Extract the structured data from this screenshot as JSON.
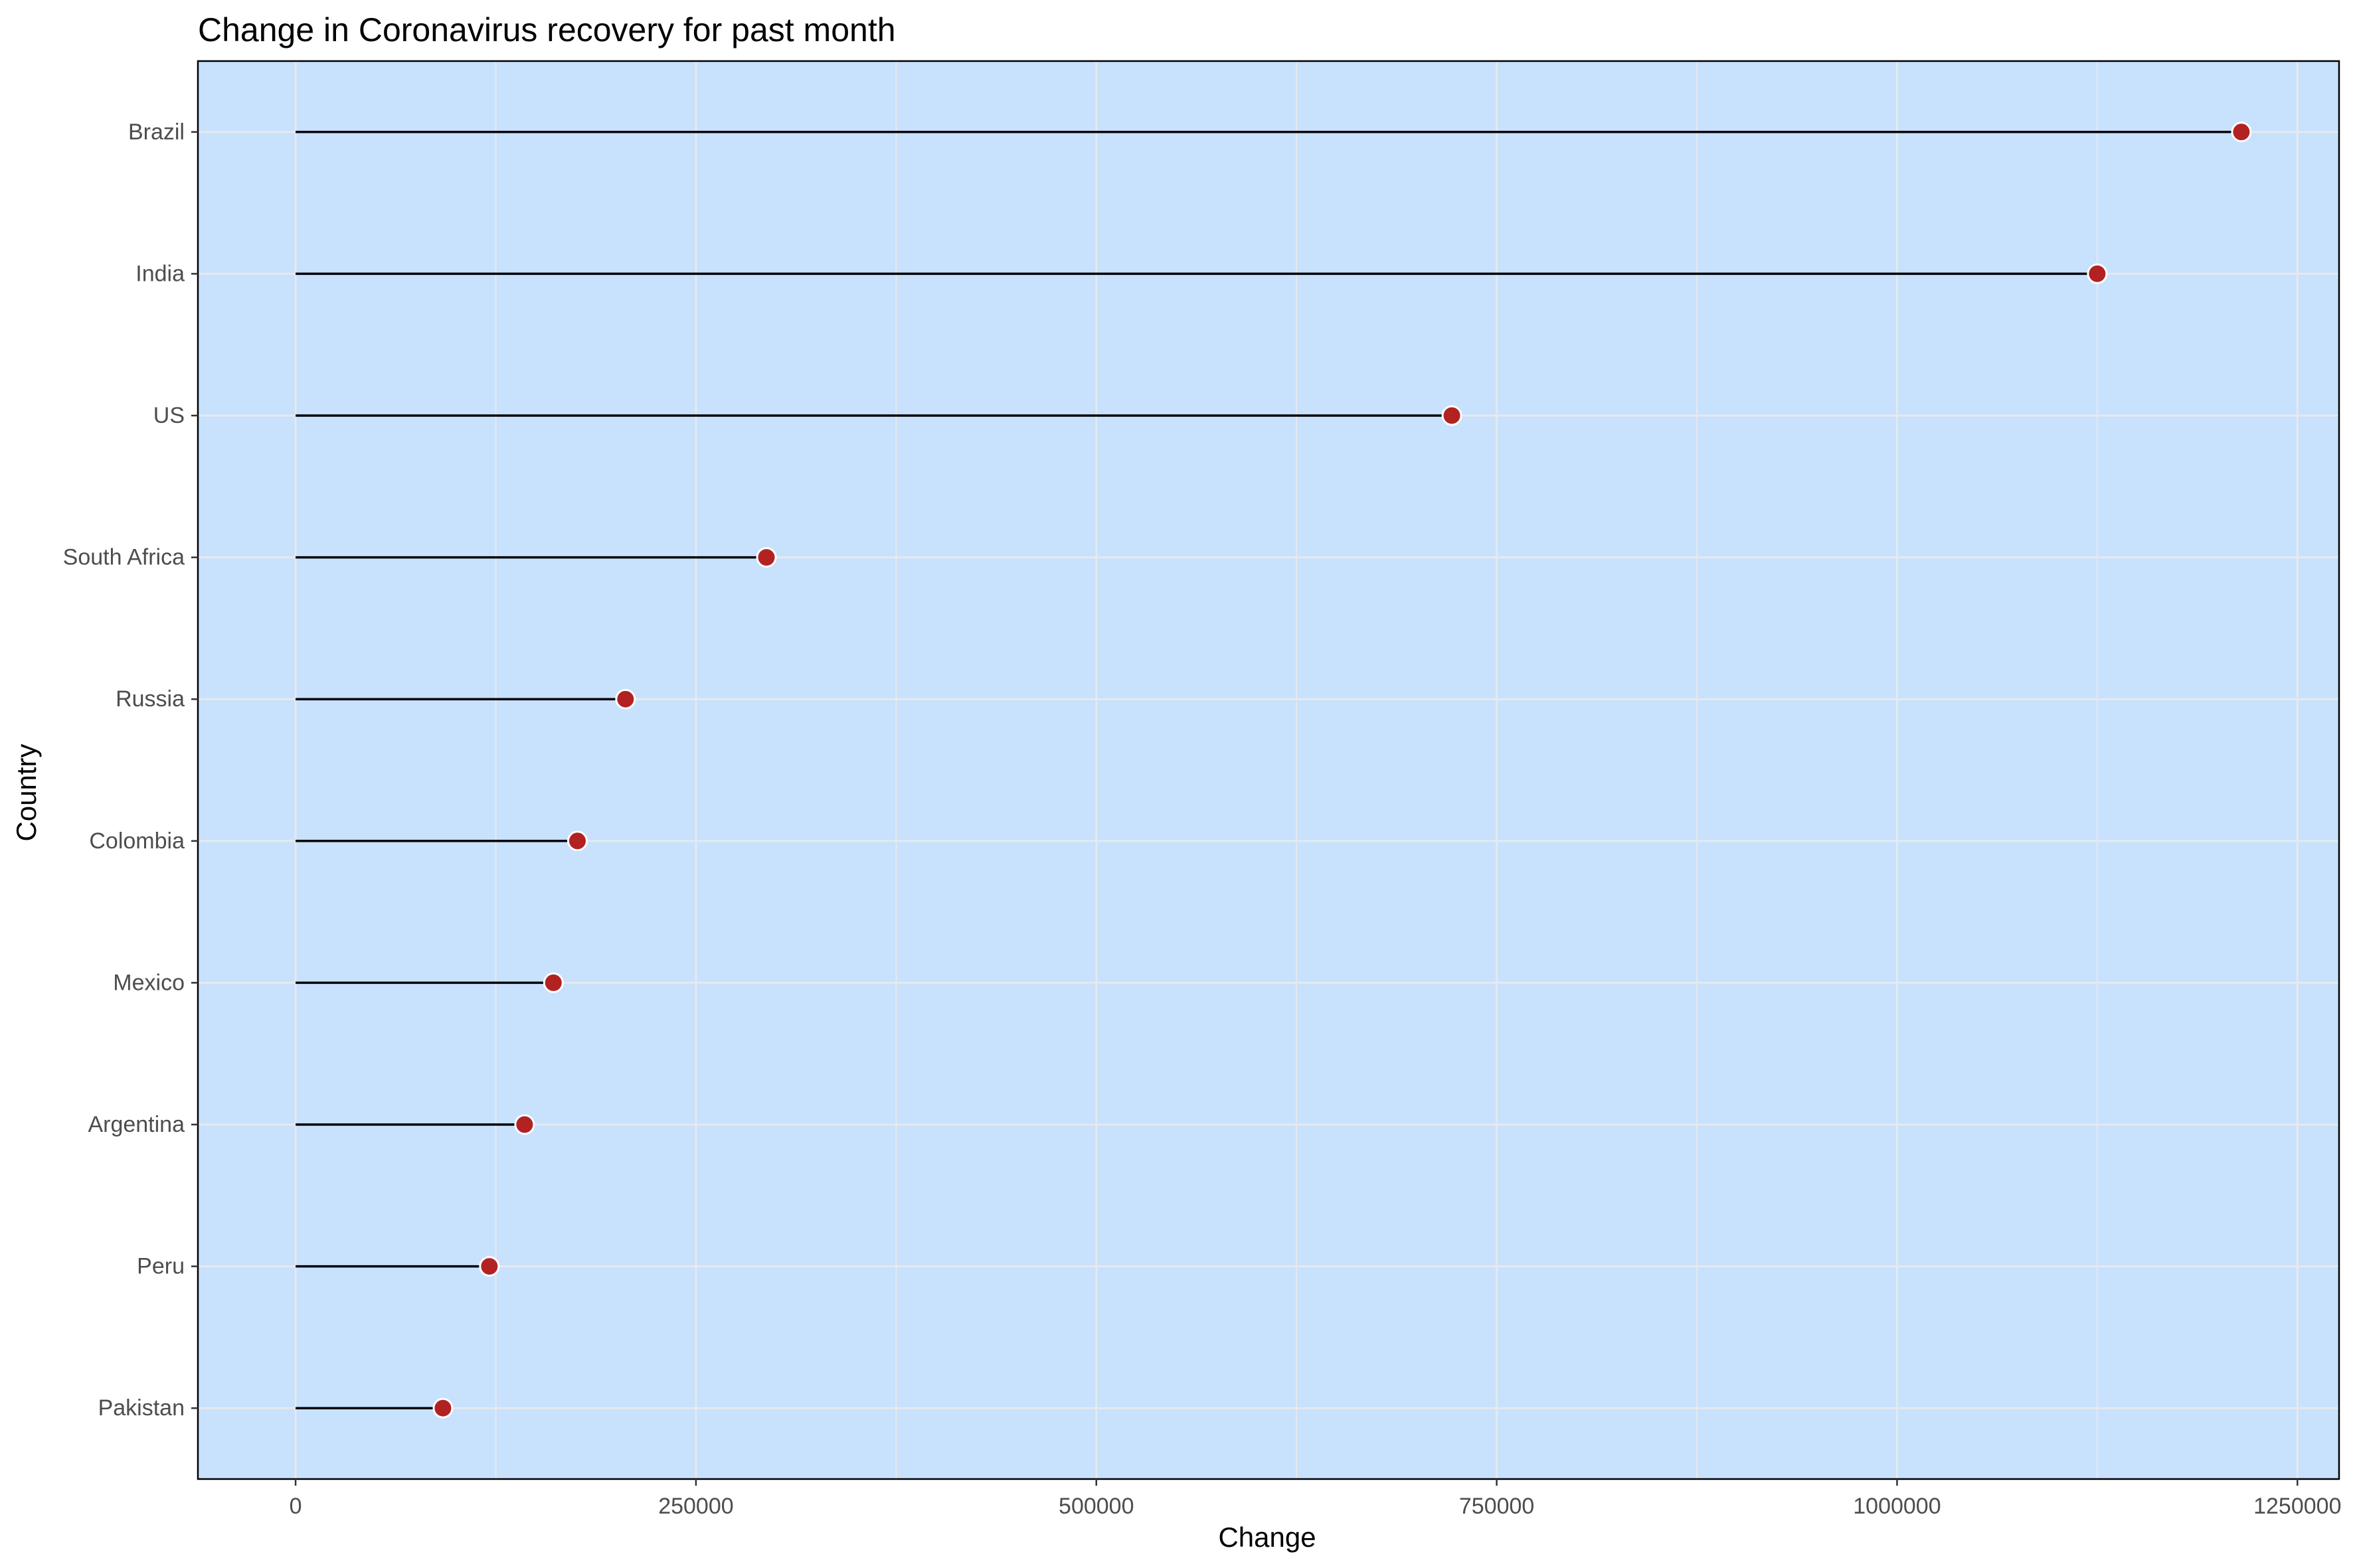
{
  "chart_data": {
    "type": "lollipop",
    "title": "Change in Coronavirus recovery for past month",
    "xlabel": "Change",
    "ylabel": "Country",
    "xlim": [
      -61000,
      1276000
    ],
    "xticks": [
      0,
      250000,
      500000,
      750000,
      1000000,
      1250000
    ],
    "xtick_labels": [
      "0",
      "250000",
      "500000",
      "750000",
      "1000000",
      "1250000"
    ],
    "grid": true,
    "categories": [
      "Brazil",
      "India",
      "US",
      "South Africa",
      "Russia",
      "Colombia",
      "Mexico",
      "Argentina",
      "Peru",
      "Pakistan"
    ],
    "values": [
      1215000,
      1125000,
      722000,
      294000,
      206000,
      176000,
      161000,
      143000,
      121000,
      92000
    ],
    "colors": {
      "panel_background": "#c8e1fc",
      "grid": "#e6e9ee",
      "stem": "#000000",
      "point_fill": "#b22222",
      "point_stroke": "#ffffff"
    }
  }
}
